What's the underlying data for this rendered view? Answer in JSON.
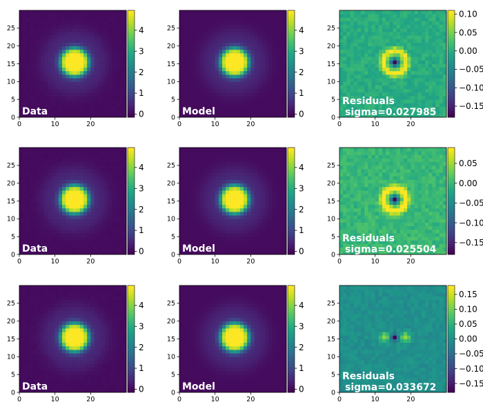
{
  "chart_data": [
    {
      "type": "heatmap",
      "row": 1,
      "kind": "data",
      "label": "Data",
      "xticks": [
        "0",
        "10",
        "20"
      ],
      "yticks": [
        "0",
        "5",
        "10",
        "15",
        "20",
        "25"
      ],
      "cbar_ticks": [
        "0",
        "1",
        "2",
        "3",
        "4"
      ],
      "vmin": -0.15,
      "vmax": 4.95
    },
    {
      "type": "heatmap",
      "row": 1,
      "kind": "model",
      "label": "Model",
      "xticks": [
        "0",
        "10",
        "20"
      ],
      "yticks": [
        "0",
        "5",
        "10",
        "15",
        "20",
        "25"
      ],
      "cbar_ticks": [
        "0",
        "1",
        "2",
        "3",
        "4"
      ],
      "vmin": -0.15,
      "vmax": 4.95
    },
    {
      "type": "heatmap",
      "row": 1,
      "kind": "residual",
      "label": "Residuals",
      "sigma_label": "sigma=0.027985",
      "xticks": [
        "0",
        "10",
        "20"
      ],
      "yticks": [
        "0",
        "5",
        "10",
        "15",
        "20",
        "25"
      ],
      "cbar_ticks": [
        "0.10",
        "0.05",
        "0.00",
        "−0.05",
        "−0.10",
        "−0.15"
      ],
      "vmin": -0.18,
      "vmax": 0.11
    },
    {
      "type": "heatmap",
      "row": 2,
      "kind": "data",
      "label": "Data",
      "xticks": [
        "0",
        "10",
        "20"
      ],
      "yticks": [
        "0",
        "5",
        "10",
        "15",
        "20",
        "25"
      ],
      "cbar_ticks": [
        "0",
        "1",
        "2",
        "3",
        "4"
      ],
      "vmin": -0.15,
      "vmax": 4.95
    },
    {
      "type": "heatmap",
      "row": 2,
      "kind": "model",
      "label": "Model",
      "xticks": [
        "0",
        "10",
        "20"
      ],
      "yticks": [
        "0",
        "5",
        "10",
        "15",
        "20",
        "25"
      ],
      "cbar_ticks": [
        "0",
        "1",
        "2",
        "3",
        "4"
      ],
      "vmin": -0.15,
      "vmax": 4.95
    },
    {
      "type": "heatmap",
      "row": 2,
      "kind": "residual",
      "label": "Residuals",
      "sigma_label": "sigma=0.025504",
      "xticks": [
        "0",
        "10",
        "20"
      ],
      "yticks": [
        "0",
        "5",
        "10",
        "15",
        "20",
        "25"
      ],
      "cbar_ticks": [
        "0.05",
        "0.00",
        "−0.05",
        "−0.10",
        "−0.15"
      ],
      "vmin": -0.18,
      "vmax": 0.09
    },
    {
      "type": "heatmap",
      "row": 3,
      "kind": "data",
      "label": "Data",
      "xticks": [
        "0",
        "10",
        "20"
      ],
      "yticks": [
        "0",
        "5",
        "10",
        "15",
        "20",
        "25"
      ],
      "cbar_ticks": [
        "0",
        "1",
        "2",
        "3",
        "4"
      ],
      "vmin": -0.15,
      "vmax": 4.95
    },
    {
      "type": "heatmap",
      "row": 3,
      "kind": "model",
      "label": "Model",
      "xticks": [
        "0",
        "10",
        "20"
      ],
      "yticks": [
        "0",
        "5",
        "10",
        "15",
        "20",
        "25"
      ],
      "cbar_ticks": [
        "0",
        "1",
        "2",
        "3",
        "4"
      ],
      "vmin": -0.15,
      "vmax": 4.95
    },
    {
      "type": "heatmap",
      "row": 3,
      "kind": "residual",
      "label": "Residuals",
      "sigma_label": "sigma=0.033672",
      "xticks": [
        "0",
        "10",
        "20"
      ],
      "yticks": [
        "0",
        "5",
        "10",
        "15",
        "20",
        "25"
      ],
      "cbar_ticks": [
        "0.15",
        "0.10",
        "0.05",
        "0.00",
        "−0.05",
        "−0.10",
        "−0.15"
      ],
      "vmin": -0.18,
      "vmax": 0.18
    }
  ],
  "colormap": "viridis",
  "colors": {
    "text": "#000000",
    "label_text": "#ffffff"
  }
}
